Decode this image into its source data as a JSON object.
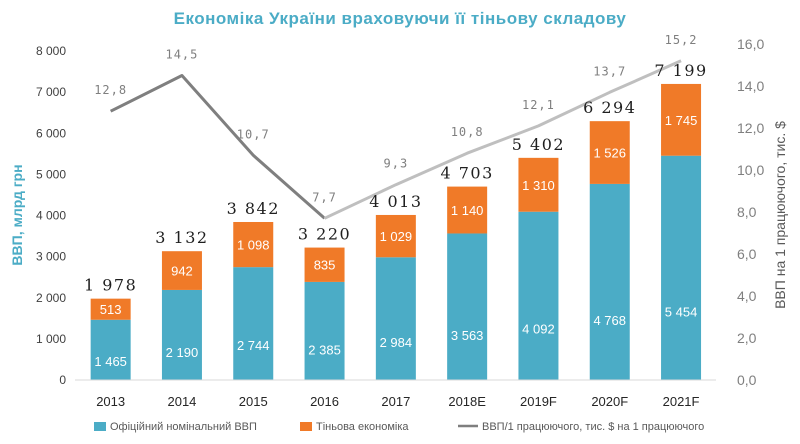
{
  "title": "Економіка  України  враховуючи  її  тіньову  складову",
  "chart_data": {
    "type": "bar",
    "stacked": true,
    "categories": [
      "2013",
      "2014",
      "2015",
      "2016",
      "2017",
      "2018E",
      "2019F",
      "2020F",
      "2021F"
    ],
    "series": [
      {
        "name": "Офіційний номінальний ВВП",
        "color": "#4bacc6",
        "values": [
          1465,
          2190,
          2744,
          2385,
          2984,
          3563,
          4092,
          4768,
          5454
        ],
        "labels": [
          "1 465",
          "2 190",
          "2 744",
          "2 385",
          "2 984",
          "3 563",
          "4 092",
          "4 768",
          "5 454"
        ]
      },
      {
        "name": "Тіньова економіка",
        "color": "#f07a28",
        "values": [
          513,
          942,
          1098,
          835,
          1029,
          1140,
          1310,
          1526,
          1745
        ],
        "labels": [
          "513",
          "942",
          "1 098",
          "835",
          "1 029",
          "1 140",
          "1 310",
          "1 526",
          "1 745"
        ]
      }
    ],
    "totals": [
      1978,
      3132,
      3842,
      3220,
      4013,
      4703,
      5402,
      6294,
      7199
    ],
    "total_labels": [
      "1 978",
      "3 132",
      "3 842",
      "3 220",
      "4 013",
      "4 703",
      "5 402",
      "6 294",
      "7 199"
    ],
    "line": {
      "name": "ВВП/1 працюючого, тис. $ на 1 працюючого",
      "axis": "right",
      "values": [
        12.8,
        14.5,
        10.7,
        7.7,
        9.3,
        10.8,
        12.1,
        13.7,
        15.2
      ],
      "labels": [
        "12,8",
        "14,5",
        "10,7",
        "7,7",
        "9,3",
        "10,8",
        "12,1",
        "13,7",
        "15,2"
      ],
      "colors": [
        "#7f7f7f",
        "#bfbfbf"
      ],
      "color_change_after_index": 3
    },
    "ylabel": "ВВП,  млрд  грн",
    "ylabel_right": "ВВП на 1 працюючого, тис. $",
    "ylim": [
      0,
      8000
    ],
    "ylim_right": [
      0,
      16
    ],
    "yticks": [
      "0",
      "1 000",
      "2 000",
      "3 000",
      "4 000",
      "5 000",
      "6 000",
      "7 000",
      "8 000"
    ],
    "yticks_right": [
      "0,0",
      "2,0",
      "4,0",
      "6,0",
      "8,0",
      "10,0",
      "12,0",
      "14,0",
      "16,0"
    ],
    "grid": false,
    "legend_position": "bottom"
  }
}
